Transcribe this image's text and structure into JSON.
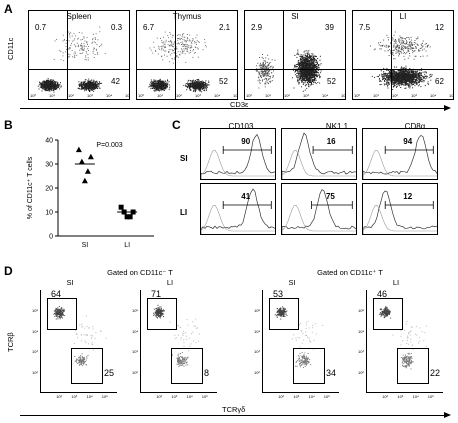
{
  "panel_labels": {
    "a": "A",
    "b": "B",
    "c": "C",
    "d": "D"
  },
  "panel_a": {
    "y_label": "CD11c",
    "x_label": "CD3ε",
    "plots": [
      {
        "title": "Spleen",
        "ul": "0.7",
        "ur": "0.3",
        "lr": "42"
      },
      {
        "title": "Thymus",
        "ul": "6.7",
        "ur": "2.1",
        "lr": "52"
      },
      {
        "title": "SI",
        "ul": "2.9",
        "ur": "39",
        "lr": "52"
      },
      {
        "title": "LI",
        "ul": "7.5",
        "ur": "12",
        "lr": "62"
      }
    ]
  },
  "chart_data": {
    "type": "scatter",
    "ylabel": "% of CD11c⁺ T cells",
    "categories": [
      "SI",
      "LI"
    ],
    "annotation": "P=0.003",
    "series": [
      {
        "name": "SI",
        "marker": "triangle",
        "values": [
          36,
          33,
          31,
          27,
          23
        ],
        "mean": 30
      },
      {
        "name": "LI",
        "marker": "square",
        "values": [
          12,
          10,
          10,
          8,
          8
        ],
        "mean": 10
      }
    ],
    "ylim": [
      0,
      40
    ]
  },
  "panel_c": {
    "columns": [
      "CD103",
      "NK1.1",
      "CD8α"
    ],
    "rows": [
      "SI",
      "LI"
    ],
    "values": [
      [
        "90",
        "16",
        "94"
      ],
      [
        "41",
        "75",
        "12"
      ]
    ]
  },
  "panel_d": {
    "group_titles": [
      "Gated on CD11c⁻ T",
      "Gated on CD11c⁺ T"
    ],
    "plot_titles": [
      "SI",
      "LI",
      "SI",
      "LI"
    ],
    "y_label": "TCRβ",
    "x_label": "TCRγδ",
    "plots": [
      {
        "upper": "64",
        "lower": "25"
      },
      {
        "upper": "71",
        "lower": "8"
      },
      {
        "upper": "53",
        "lower": "34"
      },
      {
        "upper": "46",
        "lower": "22"
      }
    ]
  },
  "log_ticks": [
    "10⁰",
    "10¹",
    "10²",
    "10³",
    "10⁴",
    "10⁵"
  ]
}
